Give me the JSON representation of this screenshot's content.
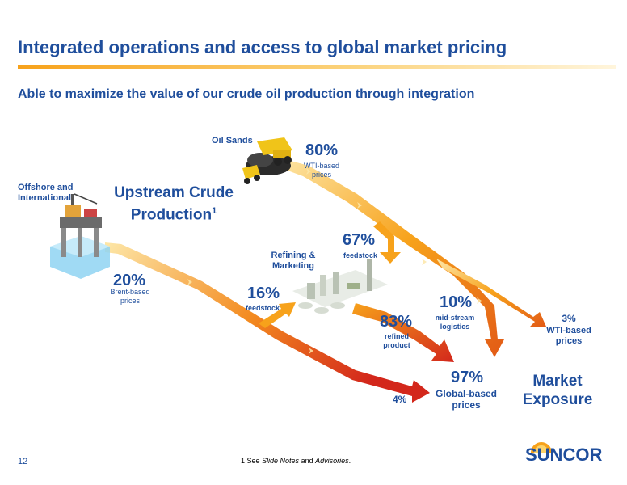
{
  "slide": {
    "title": "Integrated operations and access to global market pricing",
    "subtitle": "Able to maximize the value of our crude oil production through integration",
    "page_number": "12",
    "footnote": {
      "prefix": "1 See ",
      "slide_notes": "Slide Notes",
      "and": " and ",
      "advisories": "Advisories",
      "suffix": "."
    },
    "logo_text": "SUNCOR"
  },
  "diagram": {
    "oil_sands_label": "Oil Sands",
    "offshore_label": "Offshore and International",
    "upstream_label": "Upstream Crude Production",
    "upstream_sup": "1",
    "refining_label": "Refining & Marketing",
    "market_label": "Market Exposure",
    "wti_80": {
      "pct": "80%",
      "desc": "WTI-based prices"
    },
    "brent_20": {
      "pct": "20%",
      "desc": "Brent-based prices"
    },
    "feed_67": {
      "pct": "67%",
      "desc": "feedstock"
    },
    "feed_16": {
      "pct": "16%",
      "desc": "feedstock"
    },
    "refined_83": {
      "pct": "83%",
      "desc": "refined product"
    },
    "midstream_10": {
      "pct": "10%",
      "desc": "mid-stream logistics"
    },
    "wti_3": {
      "pct": "3%",
      "desc": "WTI-based prices"
    },
    "global_97": {
      "pct": "97%",
      "desc": "Global-based prices"
    },
    "global_4": {
      "pct": "4%"
    }
  },
  "colors": {
    "brand_blue": "#1f4e9c",
    "arrow_light": "#fbc15a",
    "arrow_mid": "#f38a1f",
    "arrow_dark": "#d3271b"
  }
}
